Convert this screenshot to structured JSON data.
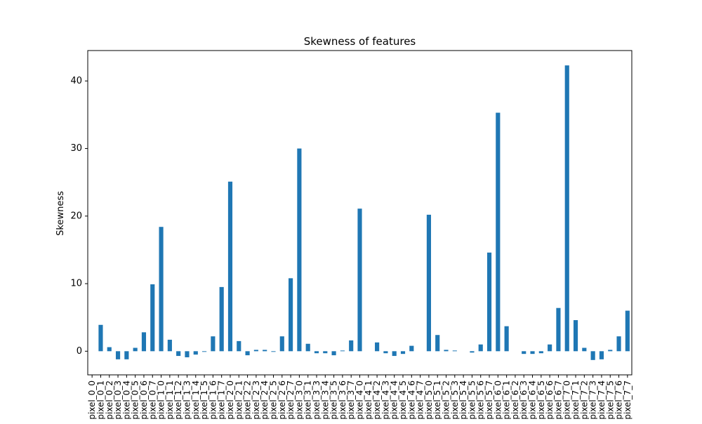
{
  "chart_data": {
    "type": "bar",
    "title": "Skewness of features",
    "xlabel": "",
    "ylabel": "Skewness",
    "ylim": [
      -3.5,
      44.5
    ],
    "yticks": [
      0,
      10,
      20,
      30,
      40
    ],
    "grid": false,
    "bar_color": "#1f77b4",
    "categories": [
      "pixel_0_0",
      "pixel_0_1",
      "pixel_0_2",
      "pixel_0_3",
      "pixel_0_4",
      "pixel_0_5",
      "pixel_0_6",
      "pixel_0_7",
      "pixel_1_0",
      "pixel_1_1",
      "pixel_1_2",
      "pixel_1_3",
      "pixel_1_4",
      "pixel_1_5",
      "pixel_1_6",
      "pixel_1_7",
      "pixel_2_0",
      "pixel_2_1",
      "pixel_2_2",
      "pixel_2_3",
      "pixel_2_4",
      "pixel_2_5",
      "pixel_2_6",
      "pixel_2_7",
      "pixel_3_0",
      "pixel_3_1",
      "pixel_3_3",
      "pixel_3_4",
      "pixel_3_5",
      "pixel_3_6",
      "pixel_3_7",
      "pixel_4_0",
      "pixel_4_1",
      "pixel_4_2",
      "pixel_4_3",
      "pixel_4_4",
      "pixel_4_5",
      "pixel_4_6",
      "pixel_4_7",
      "pixel_5_0",
      "pixel_5_1",
      "pixel_5_2",
      "pixel_5_3",
      "pixel_5_4",
      "pixel_5_5",
      "pixel_5_6",
      "pixel_5_7",
      "pixel_6_0",
      "pixel_6_1",
      "pixel_6_2",
      "pixel_6_3",
      "pixel_6_4",
      "pixel_6_5",
      "pixel_6_6",
      "pixel_6_7",
      "pixel_7_0",
      "pixel_7_1",
      "pixel_7_2",
      "pixel_7_3",
      "pixel_7_4",
      "pixel_7_5",
      "pixel_7_6",
      "pixel_7_7"
    ],
    "values": [
      0,
      3.9,
      0.6,
      -1.2,
      -1.2,
      0.5,
      2.8,
      9.9,
      18.4,
      1.7,
      -0.7,
      -0.9,
      -0.5,
      -0.1,
      2.2,
      9.5,
      25.1,
      1.5,
      -0.6,
      0.2,
      0.2,
      -0.1,
      2.2,
      10.8,
      30.0,
      1.1,
      -0.3,
      -0.3,
      -0.6,
      0.1,
      1.6,
      21.1,
      0,
      1.3,
      -0.3,
      -0.7,
      -0.4,
      0.8,
      0,
      20.2,
      2.4,
      0.2,
      0.1,
      0,
      -0.2,
      1.0,
      14.6,
      35.3,
      3.7,
      0,
      -0.4,
      -0.4,
      -0.3,
      1.0,
      6.4,
      42.3,
      4.6,
      0.5,
      -1.3,
      -1.2,
      0.2,
      2.2,
      6.0
    ]
  }
}
